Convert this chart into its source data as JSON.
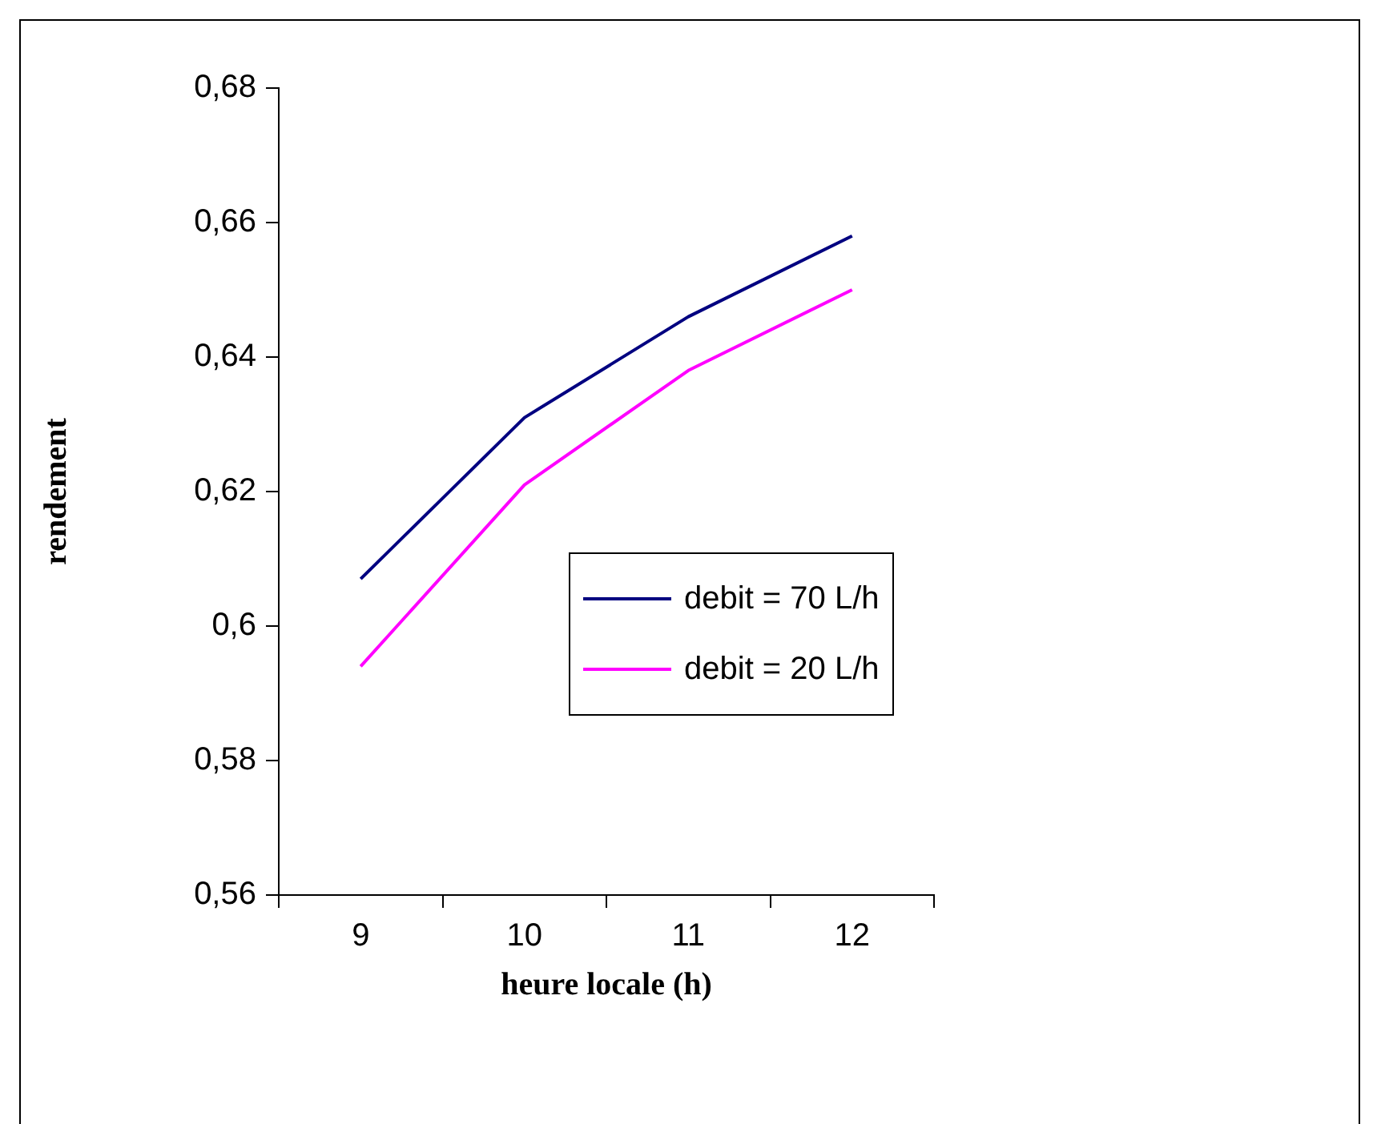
{
  "chart_data": {
    "type": "line",
    "xlabel": "heure locale (h)",
    "ylabel": "rendement",
    "categories": [
      "9",
      "10",
      "11",
      "12"
    ],
    "series": [
      {
        "name": "debit = 70 L/h",
        "color": "#000080",
        "values": [
          0.607,
          0.631,
          0.646,
          0.658
        ]
      },
      {
        "name": "debit = 20 L/h",
        "color": "#ff00ff",
        "values": [
          0.594,
          0.621,
          0.638,
          0.65
        ]
      }
    ],
    "ylim": [
      0.56,
      0.68
    ],
    "yticks": [
      {
        "value": 0.56,
        "label": "0,56"
      },
      {
        "value": 0.58,
        "label": "0,58"
      },
      {
        "value": 0.6,
        "label": "0,6"
      },
      {
        "value": 0.62,
        "label": "0,62"
      },
      {
        "value": 0.64,
        "label": "0,64"
      },
      {
        "value": 0.66,
        "label": "0,66"
      },
      {
        "value": 0.68,
        "label": "0,68"
      }
    ],
    "grid": false,
    "legend": "right",
    "marker": "none",
    "line_style": "solid"
  }
}
